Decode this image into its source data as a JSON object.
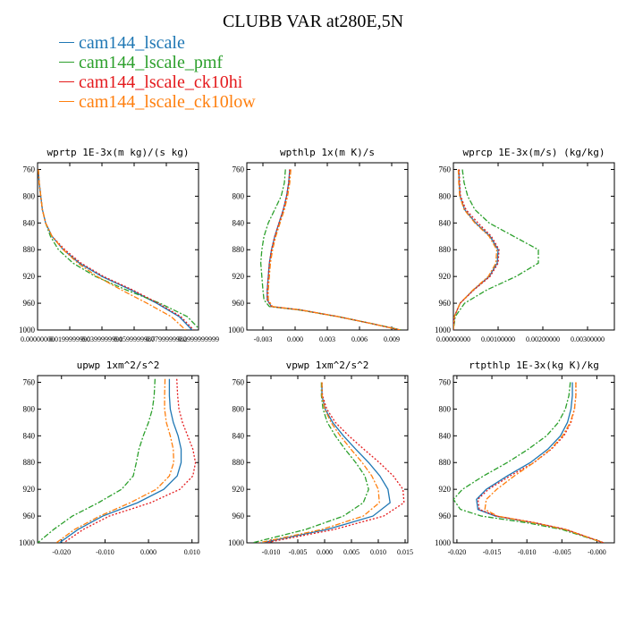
{
  "figure": {
    "title": "CLUBB VAR at280E,5N",
    "legend": [
      {
        "label": "cam144_lscale",
        "color": "#1f77b4"
      },
      {
        "label": "cam144_lscale_pmf",
        "color": "#2ca02c"
      },
      {
        "label": "cam144_lscale_ck10hi",
        "color": "#e41a1c"
      },
      {
        "label": "cam144_lscale_ck10low",
        "color": "#ff7f0e"
      }
    ]
  },
  "chart_data": [
    {
      "type": "line",
      "title": "wprtp  1E-3x(m kg)/(s kg)",
      "ylim": [
        1000,
        750
      ],
      "yticks": [
        760,
        800,
        840,
        880,
        920,
        960,
        1000
      ],
      "ytick_labels": [
        "760",
        "800",
        "840",
        "880",
        "920",
        "960",
        "1000"
      ],
      "xlim": [
        0.0,
        0.1
      ],
      "xticks": [
        0.0,
        0.02,
        0.04,
        0.06,
        0.08,
        0.1
      ],
      "xtick_labels": [
        "0.00000000",
        "0.0199999990",
        "0.0399999991",
        "0.0599999987",
        "0.0799999982",
        "0.0999999999"
      ],
      "pressure": [
        760,
        780,
        800,
        820,
        840,
        860,
        880,
        900,
        920,
        940,
        960,
        980,
        1000
      ],
      "series": [
        {
          "name": "cam144_lscale",
          "color": "#1f77b4",
          "dash": "",
          "values": [
            0.0005,
            0.001,
            0.002,
            0.003,
            0.005,
            0.009,
            0.016,
            0.026,
            0.04,
            0.058,
            0.074,
            0.088,
            0.096
          ]
        },
        {
          "name": "cam144_lscale_pmf",
          "color": "#2ca02c",
          "dash": "6,2,2,2",
          "values": [
            0.0005,
            0.001,
            0.002,
            0.003,
            0.005,
            0.008,
            0.013,
            0.022,
            0.036,
            0.055,
            0.076,
            0.093,
            0.101
          ]
        },
        {
          "name": "cam144_lscale_ck10hi",
          "color": "#e41a1c",
          "dash": "2,2",
          "values": [
            0.0005,
            0.001,
            0.002,
            0.003,
            0.005,
            0.009,
            0.017,
            0.027,
            0.041,
            0.059,
            0.075,
            0.089,
            0.097
          ]
        },
        {
          "name": "cam144_lscale_ck10low",
          "color": "#ff7f0e",
          "dash": "6,2,2,2",
          "values": [
            0.0005,
            0.001,
            0.002,
            0.003,
            0.005,
            0.009,
            0.016,
            0.025,
            0.037,
            0.052,
            0.068,
            0.083,
            0.092
          ]
        }
      ]
    },
    {
      "type": "line",
      "title": "wpthlp  1x(m K)/s",
      "ylim": [
        1000,
        750
      ],
      "yticks": [
        760,
        800,
        840,
        880,
        920,
        960,
        1000
      ],
      "ytick_labels": [
        "760",
        "800",
        "840",
        "880",
        "920",
        "960",
        "1000"
      ],
      "xlim": [
        -0.0045,
        0.0105
      ],
      "xticks": [
        -0.003,
        0.0,
        0.003,
        0.006,
        0.009
      ],
      "xtick_labels": [
        "-0.003",
        "0.000",
        "0.003",
        "0.006",
        "0.009"
      ],
      "pressure": [
        760,
        780,
        800,
        820,
        840,
        860,
        880,
        900,
        920,
        940,
        955,
        965,
        970,
        980,
        990,
        1000
      ],
      "series": [
        {
          "name": "cam144_lscale",
          "color": "#1f77b4",
          "dash": "",
          "values": [
            -0.0005,
            -0.0006,
            -0.0008,
            -0.0011,
            -0.0015,
            -0.0019,
            -0.0022,
            -0.0024,
            -0.0025,
            -0.0026,
            -0.0026,
            -0.0022,
            0.0005,
            0.004,
            0.007,
            0.0098
          ]
        },
        {
          "name": "cam144_lscale_pmf",
          "color": "#2ca02c",
          "dash": "6,2,2,2",
          "values": [
            -0.0009,
            -0.001,
            -0.0013,
            -0.0019,
            -0.0025,
            -0.0029,
            -0.0031,
            -0.0032,
            -0.0031,
            -0.003,
            -0.0029,
            -0.0024,
            0.0004,
            0.004,
            0.007,
            0.0099
          ]
        },
        {
          "name": "cam144_lscale_ck10hi",
          "color": "#e41a1c",
          "dash": "2,2",
          "values": [
            -0.0005,
            -0.0006,
            -0.0008,
            -0.0011,
            -0.0015,
            -0.0019,
            -0.0022,
            -0.0024,
            -0.0025,
            -0.0026,
            -0.0026,
            -0.0022,
            0.0005,
            0.004,
            0.007,
            0.0098
          ]
        },
        {
          "name": "cam144_lscale_ck10low",
          "color": "#ff7f0e",
          "dash": "6,2,2,2",
          "values": [
            -0.0004,
            -0.0005,
            -0.0007,
            -0.001,
            -0.0014,
            -0.0018,
            -0.0021,
            -0.0023,
            -0.0024,
            -0.0025,
            -0.0025,
            -0.0021,
            0.0005,
            0.004,
            0.007,
            0.0098
          ]
        }
      ]
    },
    {
      "type": "line",
      "title": "wprcp  1E-3x(m/s) (kg/kg)",
      "ylim": [
        1000,
        750
      ],
      "yticks": [
        760,
        800,
        840,
        880,
        920,
        960,
        1000
      ],
      "ytick_labels": [
        "760",
        "800",
        "840",
        "880",
        "920",
        "960",
        "1000"
      ],
      "xlim": [
        0.0,
        0.0036
      ],
      "xticks": [
        0.0,
        0.001,
        0.002,
        0.003
      ],
      "xtick_labels": [
        "0.00000000",
        "0.00100000",
        "0.00200000",
        "0.00300000"
      ],
      "pressure": [
        760,
        780,
        800,
        820,
        840,
        860,
        880,
        900,
        920,
        940,
        960,
        980,
        1000
      ],
      "series": [
        {
          "name": "cam144_lscale",
          "color": "#1f77b4",
          "dash": "",
          "values": [
            0.00012,
            0.00013,
            0.00015,
            0.00025,
            0.0005,
            0.00082,
            0.001,
            0.00098,
            0.0008,
            0.00045,
            0.00015,
            2e-05,
            0.0
          ]
        },
        {
          "name": "cam144_lscale_pmf",
          "color": "#2ca02c",
          "dash": "6,2,2,2",
          "values": [
            0.0002,
            0.00024,
            0.00032,
            0.00048,
            0.0008,
            0.00135,
            0.0019,
            0.0019,
            0.0014,
            0.00075,
            0.00025,
            4e-05,
            0.0
          ]
        },
        {
          "name": "cam144_lscale_ck10hi",
          "color": "#e41a1c",
          "dash": "2,2",
          "values": [
            0.00013,
            0.00014,
            0.00016,
            0.00028,
            0.00055,
            0.00085,
            0.00102,
            0.001,
            0.00082,
            0.00046,
            0.00015,
            2e-05,
            0.0
          ]
        },
        {
          "name": "cam144_lscale_ck10low",
          "color": "#ff7f0e",
          "dash": "6,2,2,2",
          "values": [
            0.00011,
            0.00012,
            0.00014,
            0.00024,
            0.00048,
            0.0008,
            0.00097,
            0.00095,
            0.00078,
            0.00044,
            0.00015,
            2e-05,
            0.0
          ]
        }
      ]
    },
    {
      "type": "line",
      "title": "upwp  1xm^2/s^2",
      "ylim": [
        1000,
        750
      ],
      "yticks": [
        760,
        800,
        840,
        880,
        920,
        960,
        1000
      ],
      "ytick_labels": [
        "760",
        "800",
        "840",
        "880",
        "920",
        "960",
        "1000"
      ],
      "xlim": [
        -0.0255,
        0.0115
      ],
      "xticks": [
        -0.02,
        -0.01,
        0.0,
        0.01
      ],
      "xtick_labels": [
        "-0.020",
        "-0.010",
        "0.000",
        "0.010"
      ],
      "pressure": [
        755,
        780,
        800,
        820,
        840,
        860,
        880,
        900,
        920,
        940,
        960,
        980,
        1000
      ],
      "series": [
        {
          "name": "cam144_lscale",
          "color": "#1f77b4",
          "dash": "",
          "values": [
            0.0048,
            0.0048,
            0.005,
            0.0057,
            0.0068,
            0.0075,
            0.0075,
            0.0066,
            0.0035,
            -0.0025,
            -0.0105,
            -0.0162,
            -0.0205
          ]
        },
        {
          "name": "cam144_lscale_pmf",
          "color": "#2ca02c",
          "dash": "6,2,2,2",
          "values": [
            0.0015,
            0.0013,
            0.0009,
            0.0,
            -0.0012,
            -0.0022,
            -0.0028,
            -0.0035,
            -0.0062,
            -0.0115,
            -0.0175,
            -0.0218,
            -0.0255
          ]
        },
        {
          "name": "cam144_lscale_ck10hi",
          "color": "#e41a1c",
          "dash": "2,2",
          "values": [
            0.0065,
            0.0067,
            0.007,
            0.0078,
            0.009,
            0.0102,
            0.0108,
            0.0102,
            0.0072,
            0.0005,
            -0.009,
            -0.015,
            -0.0195
          ]
        },
        {
          "name": "cam144_lscale_ck10low",
          "color": "#ff7f0e",
          "dash": "6,2,2,2",
          "values": [
            0.0038,
            0.0037,
            0.0037,
            0.0041,
            0.005,
            0.0057,
            0.0058,
            0.0048,
            0.0018,
            -0.0042,
            -0.0112,
            -0.017,
            -0.0212
          ]
        }
      ]
    },
    {
      "type": "line",
      "title": "vpwp  1xm^2/s^2",
      "ylim": [
        1000,
        750
      ],
      "yticks": [
        760,
        800,
        840,
        880,
        920,
        960,
        1000
      ],
      "ytick_labels": [
        "760",
        "800",
        "840",
        "880",
        "920",
        "960",
        "1000"
      ],
      "xlim": [
        -0.0145,
        0.0155
      ],
      "xticks": [
        -0.01,
        -0.005,
        0.0,
        0.005,
        0.01,
        0.015
      ],
      "xtick_labels": [
        "-0.010",
        "-0.005",
        "0.000",
        "0.005",
        "0.010",
        "0.015"
      ],
      "pressure": [
        760,
        780,
        800,
        820,
        840,
        860,
        880,
        900,
        920,
        940,
        960,
        980,
        1000
      ],
      "series": [
        {
          "name": "cam144_lscale",
          "color": "#1f77b4",
          "dash": "",
          "values": [
            -0.0005,
            -0.0005,
            0.0001,
            0.0015,
            0.0035,
            0.0058,
            0.0082,
            0.0103,
            0.0118,
            0.0122,
            0.009,
            0.0005,
            -0.0118
          ]
        },
        {
          "name": "cam144_lscale_pmf",
          "color": "#2ca02c",
          "dash": "6,2,2,2",
          "values": [
            -0.0006,
            -0.0006,
            -0.0003,
            0.0005,
            0.002,
            0.0038,
            0.0058,
            0.0075,
            0.0082,
            0.0072,
            0.0035,
            -0.0035,
            -0.0135
          ]
        },
        {
          "name": "cam144_lscale_ck10hi",
          "color": "#e41a1c",
          "dash": "2,2",
          "values": [
            -0.0005,
            -0.0004,
            0.0004,
            0.002,
            0.0045,
            0.0073,
            0.0102,
            0.0128,
            0.0146,
            0.0148,
            0.011,
            0.0018,
            -0.011
          ]
        },
        {
          "name": "cam144_lscale_ck10low",
          "color": "#ff7f0e",
          "dash": "6,2,2,2",
          "values": [
            -0.0005,
            -0.0005,
            0.0,
            0.0012,
            0.0029,
            0.0049,
            0.007,
            0.0088,
            0.01,
            0.0102,
            0.0072,
            -0.0005,
            -0.0122
          ]
        }
      ]
    },
    {
      "type": "line",
      "title": "rtpthlp  1E-3x(kg K)/kg",
      "ylim": [
        1000,
        750
      ],
      "yticks": [
        760,
        800,
        840,
        880,
        920,
        960,
        1000
      ],
      "ytick_labels": [
        "760",
        "800",
        "840",
        "880",
        "920",
        "960",
        "1000"
      ],
      "xlim": [
        -0.0205,
        0.0025
      ],
      "xticks": [
        -0.02,
        -0.015,
        -0.01,
        -0.005,
        0.0
      ],
      "xtick_labels": [
        "-0.020",
        "-0.015",
        "-0.010",
        "-0.005",
        "-0.000"
      ],
      "pressure": [
        760,
        780,
        800,
        820,
        840,
        860,
        880,
        900,
        920,
        935,
        950,
        960,
        970,
        980,
        1000
      ],
      "series": [
        {
          "name": "cam144_lscale",
          "color": "#1f77b4",
          "dash": "",
          "values": [
            -0.0035,
            -0.0035,
            -0.0037,
            -0.0042,
            -0.0052,
            -0.007,
            -0.0095,
            -0.0128,
            -0.0158,
            -0.0172,
            -0.017,
            -0.0145,
            -0.009,
            -0.0045,
            0.001
          ]
        },
        {
          "name": "cam144_lscale_pmf",
          "color": "#2ca02c",
          "dash": "6,2,2,2",
          "values": [
            -0.0038,
            -0.004,
            -0.0045,
            -0.0055,
            -0.0072,
            -0.0098,
            -0.0128,
            -0.0162,
            -0.0192,
            -0.0205,
            -0.0195,
            -0.0165,
            -0.01,
            -0.005,
            0.001
          ]
        },
        {
          "name": "cam144_lscale_ck10hi",
          "color": "#e41a1c",
          "dash": "2,2",
          "values": [
            -0.003,
            -0.003,
            -0.0032,
            -0.0037,
            -0.0047,
            -0.0065,
            -0.009,
            -0.0124,
            -0.0155,
            -0.017,
            -0.0168,
            -0.0143,
            -0.0088,
            -0.0044,
            0.001
          ]
        },
        {
          "name": "cam144_lscale_ck10low",
          "color": "#ff7f0e",
          "dash": "6,2,2,2",
          "values": [
            -0.003,
            -0.003,
            -0.0032,
            -0.0038,
            -0.0049,
            -0.0066,
            -0.009,
            -0.0118,
            -0.0143,
            -0.0158,
            -0.016,
            -0.0142,
            -0.009,
            -0.0045,
            0.001
          ]
        }
      ]
    }
  ]
}
